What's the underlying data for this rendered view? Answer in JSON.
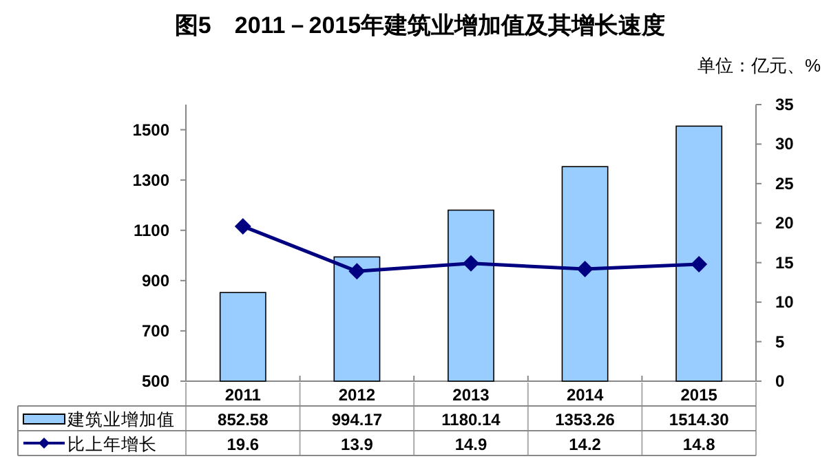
{
  "chart_data": {
    "type": "bar",
    "title": "图5　2011－2015年建筑业增加值及其增长速度",
    "annotations": [
      "单位：亿元、%"
    ],
    "categories": [
      "2011",
      "2012",
      "2013",
      "2014",
      "2015"
    ],
    "series": [
      {
        "name": "建筑业增加值",
        "color": "#99ccff",
        "values": [
          852.58,
          994.17,
          1180.14,
          1353.26,
          1514.3
        ],
        "value_labels": [
          "852.58",
          "994.17",
          "1180.14",
          "1353.26",
          "1514.30"
        ]
      },
      {
        "name": "比上年增长",
        "type": "line",
        "axis": "y2",
        "color": "#000080",
        "marker": "diamond",
        "values": [
          19.6,
          13.9,
          14.9,
          14.2,
          14.8
        ],
        "value_labels": [
          "19.6",
          "13.9",
          "14.9",
          "14.2",
          "14.8"
        ]
      }
    ],
    "ylim": [
      500,
      1600
    ],
    "yticks": [
      500,
      700,
      900,
      1100,
      1300,
      1500
    ],
    "y2lim": [
      0,
      35
    ],
    "y2ticks": [
      0,
      5,
      10,
      15,
      20,
      25,
      30,
      35
    ],
    "grid": false,
    "legend": "bottom"
  }
}
